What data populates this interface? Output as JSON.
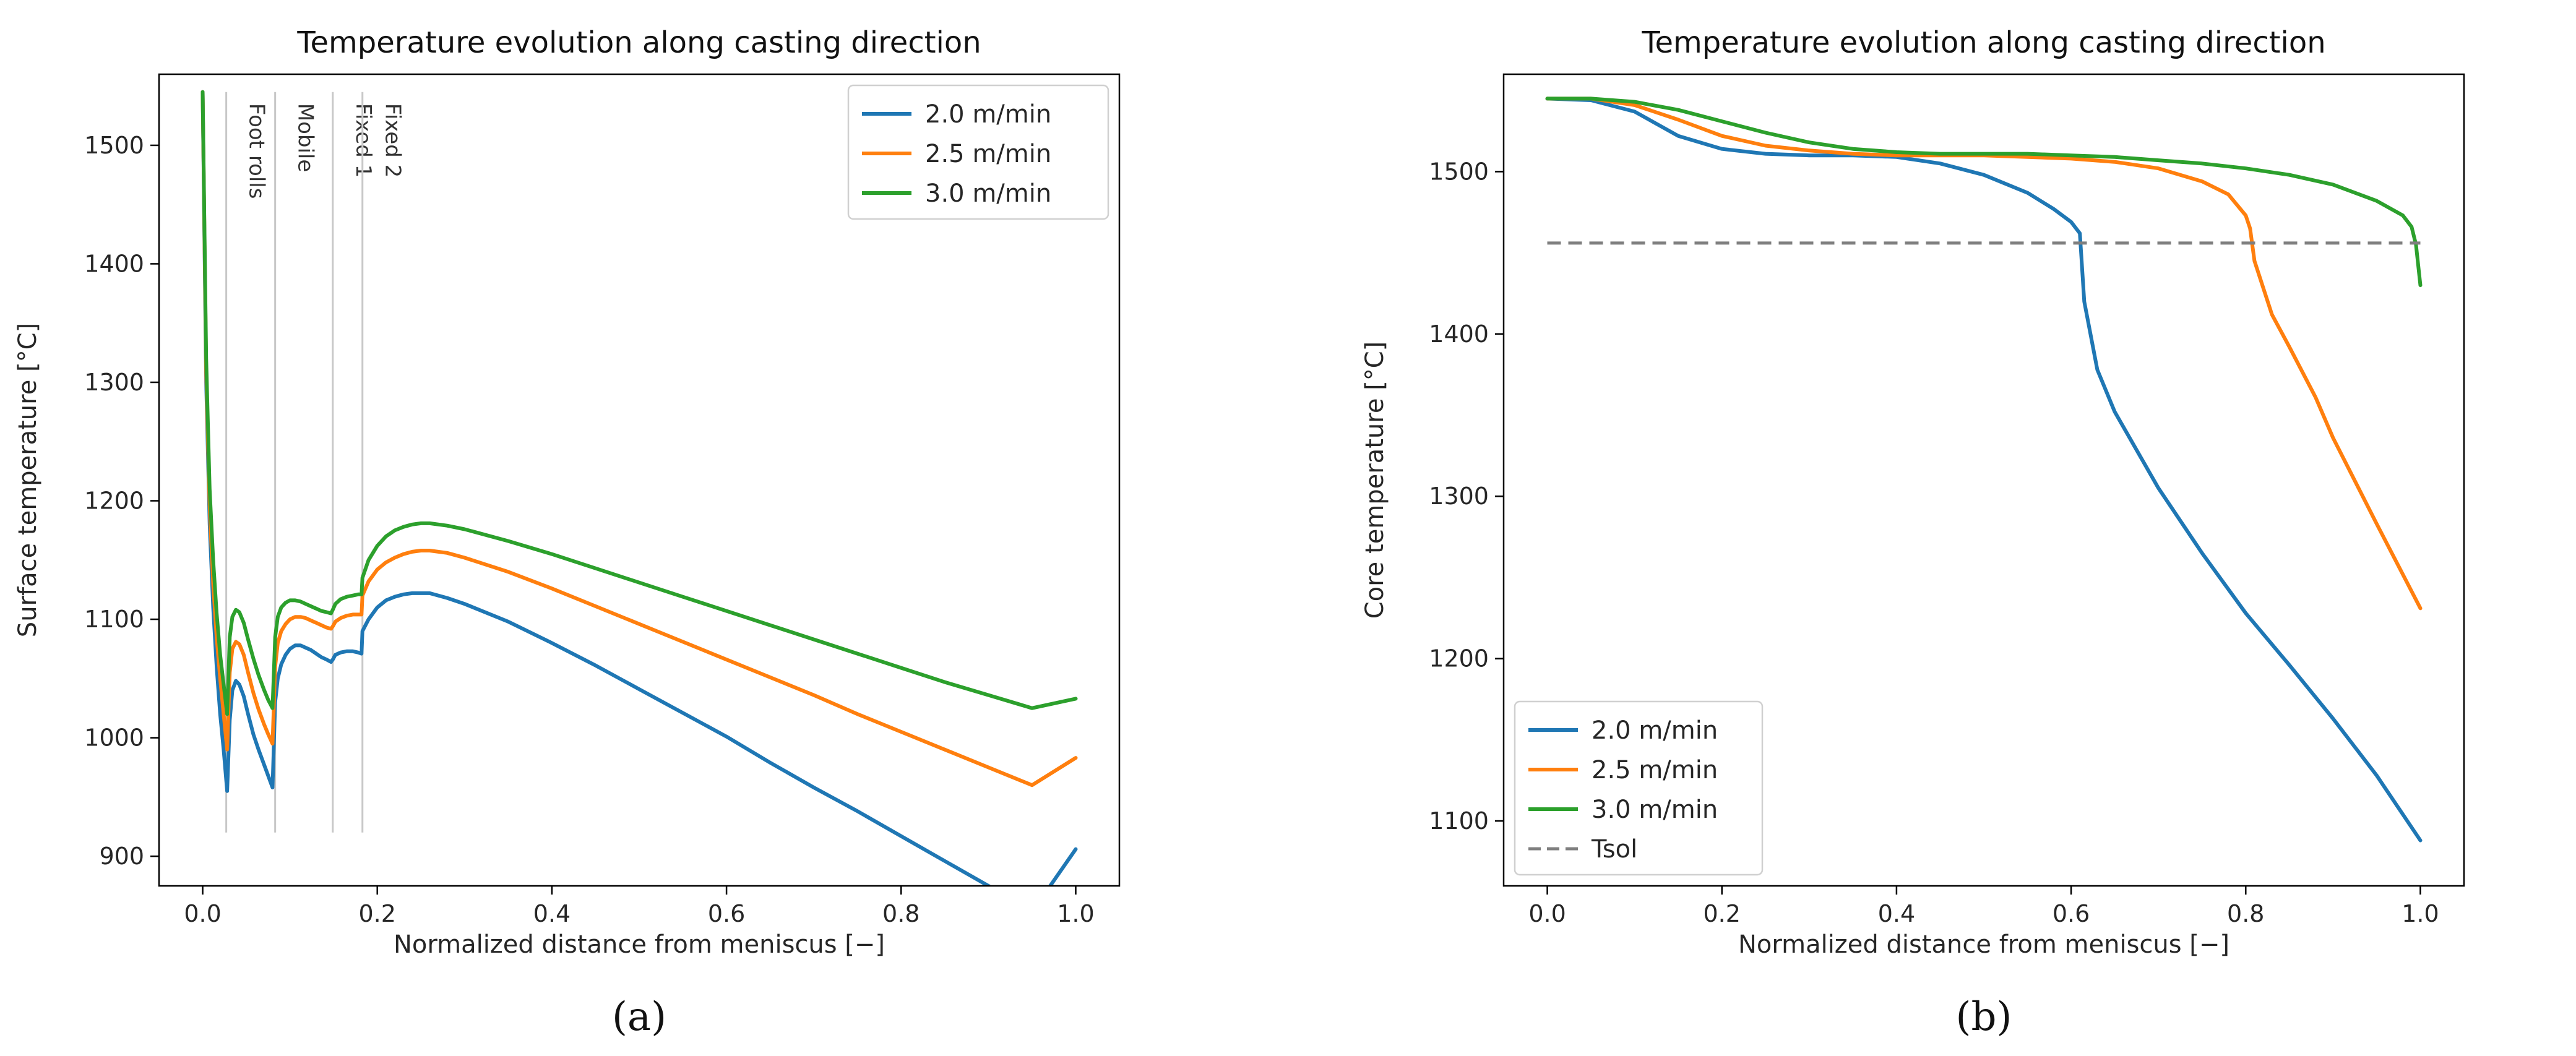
{
  "chart_data": [
    {
      "type": "line",
      "title": "Temperature evolution along casting direction",
      "xlabel": "Normalized distance from meniscus [−]",
      "ylabel": "Surface temperature [°C]",
      "xlim": [
        -0.05,
        1.05
      ],
      "ylim": [
        875,
        1560
      ],
      "xticks": [
        0.0,
        0.2,
        0.4,
        0.6,
        0.8,
        1.0
      ],
      "xtick_labels": [
        "0.0",
        "0.2",
        "0.4",
        "0.6",
        "0.8",
        "1.0"
      ],
      "yticks": [
        900,
        1000,
        1100,
        1200,
        1300,
        1400,
        1500
      ],
      "ytick_labels": [
        "900",
        "1000",
        "1100",
        "1200",
        "1300",
        "1400",
        "1500"
      ],
      "grid": false,
      "legend_position": "top-right",
      "panel_label": "(a)",
      "annotations": [
        {
          "text": "Foot rolls",
          "x": 0.027,
          "y_top": 1545,
          "y_bottom": 920
        },
        {
          "text": "Mobile",
          "x": 0.083,
          "y_top": 1545,
          "y_bottom": 920
        },
        {
          "text": "Fixed 1",
          "x": 0.149,
          "y_top": 1545,
          "y_bottom": 920
        },
        {
          "text": "Fixed 2",
          "x": 0.183,
          "y_top": 1545,
          "y_bottom": 920
        }
      ],
      "series": [
        {
          "name": "2.0 m/min",
          "color": "#1f77b4",
          "style": "solid",
          "x": [
            0.0,
            0.004,
            0.008,
            0.012,
            0.016,
            0.02,
            0.024,
            0.028,
            0.031,
            0.034,
            0.038,
            0.042,
            0.047,
            0.052,
            0.058,
            0.064,
            0.07,
            0.075,
            0.08,
            0.083,
            0.086,
            0.09,
            0.095,
            0.1,
            0.106,
            0.112,
            0.118,
            0.124,
            0.13,
            0.136,
            0.142,
            0.147,
            0.149,
            0.152,
            0.158,
            0.165,
            0.172,
            0.178,
            0.182,
            0.183,
            0.19,
            0.2,
            0.21,
            0.22,
            0.23,
            0.24,
            0.25,
            0.26,
            0.28,
            0.3,
            0.35,
            0.4,
            0.45,
            0.5,
            0.55,
            0.6,
            0.65,
            0.7,
            0.75,
            0.8,
            0.85,
            0.9,
            0.95,
            1.0
          ],
          "y": [
            1545,
            1300,
            1180,
            1110,
            1060,
            1020,
            990,
            955,
            1015,
            1040,
            1048,
            1045,
            1035,
            1020,
            1003,
            990,
            978,
            968,
            958,
            1030,
            1050,
            1062,
            1070,
            1075,
            1078,
            1078,
            1076,
            1074,
            1071,
            1068,
            1066,
            1064,
            1066,
            1070,
            1072,
            1073,
            1073,
            1072,
            1071,
            1090,
            1100,
            1110,
            1116,
            1119,
            1121,
            1122,
            1122,
            1122,
            1118,
            1113,
            1098,
            1080,
            1061,
            1041,
            1021,
            1001,
            979,
            958,
            938,
            917,
            896,
            875,
            853,
            906
          ]
        },
        {
          "name": "2.5 m/min",
          "color": "#ff7f0e",
          "style": "solid",
          "x": [
            0.0,
            0.004,
            0.008,
            0.012,
            0.016,
            0.02,
            0.024,
            0.028,
            0.031,
            0.034,
            0.038,
            0.042,
            0.047,
            0.052,
            0.058,
            0.064,
            0.07,
            0.075,
            0.08,
            0.083,
            0.086,
            0.09,
            0.095,
            0.1,
            0.106,
            0.112,
            0.118,
            0.124,
            0.13,
            0.136,
            0.142,
            0.147,
            0.149,
            0.152,
            0.158,
            0.165,
            0.172,
            0.178,
            0.182,
            0.183,
            0.19,
            0.2,
            0.21,
            0.22,
            0.23,
            0.24,
            0.25,
            0.26,
            0.28,
            0.3,
            0.35,
            0.4,
            0.45,
            0.5,
            0.55,
            0.6,
            0.65,
            0.7,
            0.75,
            0.8,
            0.85,
            0.9,
            0.95,
            1.0
          ],
          "y": [
            1545,
            1310,
            1195,
            1130,
            1085,
            1050,
            1020,
            990,
            1055,
            1075,
            1081,
            1079,
            1070,
            1055,
            1038,
            1024,
            1012,
            1003,
            995,
            1060,
            1080,
            1090,
            1096,
            1100,
            1102,
            1102,
            1101,
            1099,
            1097,
            1095,
            1093,
            1092,
            1094,
            1098,
            1101,
            1103,
            1104,
            1104,
            1104,
            1120,
            1132,
            1142,
            1148,
            1152,
            1155,
            1157,
            1158,
            1158,
            1156,
            1152,
            1140,
            1126,
            1111,
            1096,
            1081,
            1066,
            1051,
            1036,
            1020,
            1005,
            990,
            975,
            960,
            983
          ]
        },
        {
          "name": "3.0 m/min",
          "color": "#2ca02c",
          "style": "solid",
          "x": [
            0.0,
            0.004,
            0.008,
            0.012,
            0.016,
            0.02,
            0.024,
            0.028,
            0.031,
            0.034,
            0.038,
            0.042,
            0.047,
            0.052,
            0.058,
            0.064,
            0.07,
            0.075,
            0.08,
            0.083,
            0.086,
            0.09,
            0.095,
            0.1,
            0.106,
            0.112,
            0.118,
            0.124,
            0.13,
            0.136,
            0.142,
            0.147,
            0.149,
            0.152,
            0.158,
            0.165,
            0.172,
            0.178,
            0.182,
            0.183,
            0.19,
            0.2,
            0.21,
            0.22,
            0.23,
            0.24,
            0.25,
            0.26,
            0.28,
            0.3,
            0.35,
            0.4,
            0.45,
            0.5,
            0.55,
            0.6,
            0.65,
            0.7,
            0.75,
            0.8,
            0.85,
            0.9,
            0.95,
            1.0
          ],
          "y": [
            1545,
            1320,
            1210,
            1150,
            1105,
            1070,
            1045,
            1020,
            1085,
            1102,
            1108,
            1106,
            1097,
            1083,
            1067,
            1053,
            1041,
            1032,
            1025,
            1085,
            1102,
            1110,
            1114,
            1116,
            1116,
            1115,
            1113,
            1111,
            1109,
            1107,
            1106,
            1105,
            1108,
            1113,
            1117,
            1119,
            1120,
            1121,
            1121,
            1135,
            1150,
            1162,
            1170,
            1175,
            1178,
            1180,
            1181,
            1181,
            1179,
            1176,
            1166,
            1155,
            1143,
            1131,
            1119,
            1107,
            1095,
            1083,
            1071,
            1059,
            1047,
            1036,
            1025,
            1033
          ]
        }
      ]
    },
    {
      "type": "line",
      "title": "Temperature evolution along casting direction",
      "xlabel": "Normalized distance from meniscus [−]",
      "ylabel": "Core temperature [°C]",
      "xlim": [
        -0.05,
        1.05
      ],
      "ylim": [
        1060,
        1560
      ],
      "xticks": [
        0.0,
        0.2,
        0.4,
        0.6,
        0.8,
        1.0
      ],
      "xtick_labels": [
        "0.0",
        "0.2",
        "0.4",
        "0.6",
        "0.8",
        "1.0"
      ],
      "yticks": [
        1100,
        1200,
        1300,
        1400,
        1500
      ],
      "ytick_labels": [
        "1100",
        "1200",
        "1300",
        "1400",
        "1500"
      ],
      "grid": false,
      "legend_position": "bottom-left",
      "panel_label": "(b)",
      "series": [
        {
          "name": "2.0 m/min",
          "color": "#1f77b4",
          "style": "solid",
          "x": [
            0.0,
            0.05,
            0.1,
            0.15,
            0.2,
            0.25,
            0.3,
            0.35,
            0.4,
            0.45,
            0.5,
            0.55,
            0.58,
            0.6,
            0.61,
            0.615,
            0.63,
            0.65,
            0.7,
            0.75,
            0.8,
            0.85,
            0.9,
            0.95,
            1.0
          ],
          "y": [
            1545,
            1544,
            1537,
            1522,
            1514,
            1511,
            1510,
            1510,
            1509,
            1505,
            1498,
            1487,
            1477,
            1469,
            1462,
            1420,
            1378,
            1352,
            1305,
            1265,
            1228,
            1196,
            1163,
            1128,
            1088
          ]
        },
        {
          "name": "2.5 m/min",
          "color": "#ff7f0e",
          "style": "solid",
          "x": [
            0.0,
            0.05,
            0.1,
            0.15,
            0.2,
            0.25,
            0.3,
            0.35,
            0.4,
            0.45,
            0.5,
            0.55,
            0.6,
            0.65,
            0.7,
            0.75,
            0.78,
            0.8,
            0.805,
            0.81,
            0.83,
            0.85,
            0.88,
            0.9,
            0.95,
            1.0
          ],
          "y": [
            1545,
            1545,
            1541,
            1532,
            1522,
            1516,
            1513,
            1511,
            1510,
            1510,
            1510,
            1509,
            1508,
            1506,
            1502,
            1494,
            1486,
            1473,
            1465,
            1445,
            1412,
            1392,
            1361,
            1336,
            1283,
            1231
          ]
        },
        {
          "name": "3.0 m/min",
          "color": "#2ca02c",
          "style": "solid",
          "x": [
            0.0,
            0.05,
            0.1,
            0.15,
            0.2,
            0.25,
            0.3,
            0.35,
            0.4,
            0.45,
            0.5,
            0.55,
            0.6,
            0.65,
            0.7,
            0.75,
            0.8,
            0.85,
            0.9,
            0.95,
            0.98,
            0.99,
            0.995,
            1.0
          ],
          "y": [
            1545,
            1545,
            1543,
            1538,
            1531,
            1524,
            1518,
            1514,
            1512,
            1511,
            1511,
            1511,
            1510,
            1509,
            1507,
            1505,
            1502,
            1498,
            1492,
            1482,
            1473,
            1466,
            1455,
            1430
          ]
        },
        {
          "name": "Tsol",
          "color": "#7f7f7f",
          "style": "dashed",
          "x": [
            0.0,
            1.0
          ],
          "y": [
            1456,
            1456
          ]
        }
      ]
    }
  ]
}
